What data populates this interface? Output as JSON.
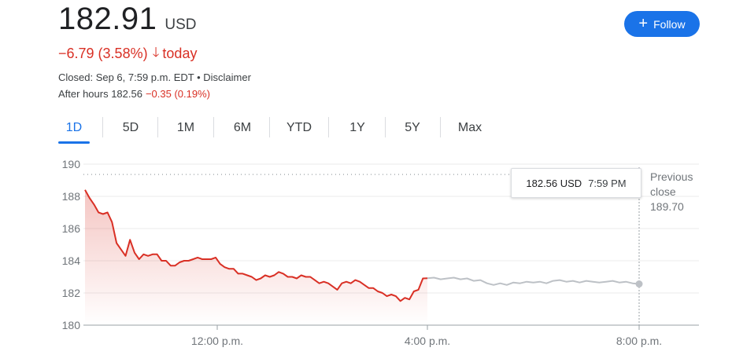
{
  "quote": {
    "price": "182.91",
    "currency": "USD",
    "change": "−6.79 (3.58%)",
    "change_arrow": "down-arrow-icon",
    "change_suffix": "today",
    "closed_text": "Closed: Sep 6, 7:59 p.m. EDT • Disclaimer",
    "after_hours_label": "After hours 182.56",
    "after_hours_change": "−0.35 (0.19%)"
  },
  "follow_button": {
    "label": "Follow",
    "icon": "plus-icon"
  },
  "tabs": [
    {
      "label": "1D",
      "active": true
    },
    {
      "label": "5D"
    },
    {
      "label": "1M"
    },
    {
      "label": "6M"
    },
    {
      "label": "YTD"
    },
    {
      "label": "1Y"
    },
    {
      "label": "5Y"
    },
    {
      "label": "Max"
    }
  ],
  "tooltip": {
    "price": "182.56 USD",
    "time": "7:59 PM"
  },
  "previous_close": {
    "line1": "Previous",
    "line2": "close",
    "value": "189.70"
  },
  "colors": {
    "down": "#d93025",
    "accent": "#1a73e8",
    "after_hours_line": "#bdc1c6"
  },
  "chart_data": {
    "type": "line",
    "ylim": [
      180,
      190
    ],
    "y_ticks": [
      "190",
      "188",
      "186",
      "184",
      "182",
      "180"
    ],
    "x_ticks": [
      "12:00 p.m.",
      "4:00 p.m.",
      "8:00 p.m."
    ],
    "previous_close": 189.7,
    "series": [
      {
        "session": "regular",
        "values": [
          188.4,
          187.9,
          187.5,
          187.0,
          186.9,
          187.0,
          186.4,
          185.1,
          184.7,
          184.3,
          185.3,
          184.5,
          184.1,
          184.4,
          184.3,
          184.4,
          184.4,
          184.0,
          184.0,
          183.7,
          183.7,
          183.9,
          184.0,
          184.0,
          184.1,
          184.2,
          184.1,
          184.1,
          184.1,
          184.2,
          183.8,
          183.6,
          183.5,
          183.5,
          183.2,
          183.2,
          183.1,
          183.0,
          182.8,
          182.9,
          183.1,
          183.0,
          183.1,
          183.3,
          183.2,
          183.0,
          183.0,
          182.9,
          183.1,
          183.0,
          183.0,
          182.8,
          182.6,
          182.7,
          182.6,
          182.4,
          182.2,
          182.6,
          182.7,
          182.6,
          182.8,
          182.7,
          182.5,
          182.3,
          182.3,
          182.1,
          182.0,
          181.8,
          181.9,
          181.8,
          181.5,
          181.7,
          181.6,
          182.1,
          182.2,
          182.9,
          182.91
        ]
      },
      {
        "session": "after-hours",
        "values": [
          182.91,
          182.95,
          182.85,
          182.9,
          182.95,
          182.85,
          182.9,
          182.75,
          182.8,
          182.6,
          182.5,
          182.6,
          182.5,
          182.65,
          182.6,
          182.7,
          182.65,
          182.7,
          182.6,
          182.75,
          182.8,
          182.7,
          182.75,
          182.65,
          182.75,
          182.7,
          182.65,
          182.7,
          182.75,
          182.65,
          182.7,
          182.6,
          182.56
        ]
      }
    ]
  }
}
